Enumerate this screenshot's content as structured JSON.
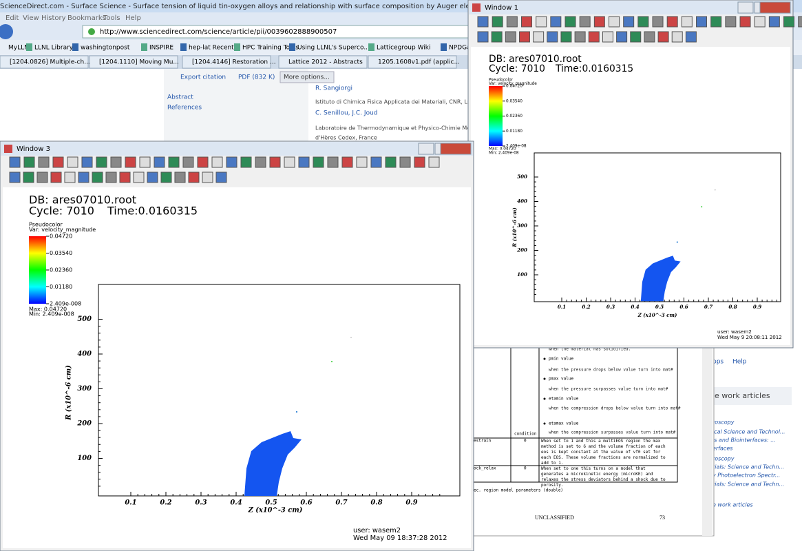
{
  "browser": {
    "title": "ScienceDirect.com - Surface Science - Surface tension of liquid tin-oxygen alloys and relationship with surface composition by Auger electron spectroscopy - Mozilla Firefox",
    "menu": [
      "Edit",
      "View",
      "History",
      "Bookmarks",
      "Tools",
      "Help"
    ],
    "url": "http://www.sciencedirect.com/science/article/pii/0039602888900507",
    "bookmarks": [
      "MyLLNL",
      "LLNL Library",
      "washingtonpost",
      "INSPIRE",
      "hep-lat Recent",
      "HPC Training Tools",
      "Using LLNL's Superco...",
      "Latticegroup Wiki",
      "NPDGami"
    ],
    "tabs": [
      "[1204.0826] Multiple-ch...",
      "[1204.1110] Moving Mu...",
      "[1204.4146] Restoration ...",
      "Lattice 2012 - Abstracts",
      "1205.1608v1.pdf (applic..."
    ],
    "page": {
      "actions": [
        "Export citation",
        "PDF (832 K)",
        "More options..."
      ],
      "nav": [
        "Abstract",
        "References"
      ],
      "author1": "R. Sangiorgi",
      "affiliation1": "Istituto di Chimica Fisica Applicata dei Materiali, CNR, Lungoba",
      "author2": "C. Senillou, J.C. Joud",
      "affiliation2": "Laboratoire de Thermodynamique et Physico-Chimie Métallurg",
      "affiliation2b": "d'Hères Cedex, France"
    }
  },
  "document": {
    "lines": [
      "when the material has solidified.",
      "pmin value",
      "when the pressure drops below value turn into mat#",
      "pmax value",
      "when the pressure surpasses value turn into mat#",
      "etamin value",
      "when the compression drops below value turn into mat#",
      "etamax value",
      "when the compression surpasses value turn into mat#"
    ],
    "condition": "condition",
    "rows": [
      [
        "estrain",
        "0",
        "When set to 1 and this a multiEOS region the max method is set to 6 and the volume fraction of each eos is kept constant at the value of vf0 set for each EOS. These volume fractions are normalized to add to 1."
      ],
      [
        "ock_relax",
        "0",
        "When set to one this turns on a model that generates a microkinetic energy (microKE) and relaxes the stress deviators behind a shock due to porosity."
      ]
    ],
    "caption": "ec. region model parameters (double)",
    "footer": "UNCLASSIFIED",
    "page": "73"
  },
  "sidebar": {
    "links": [
      "pps",
      "Help"
    ],
    "heading": "e work articles",
    "items": [
      "roscopy",
      "ical Science and Technol...",
      "is and Biointerfaces: ...",
      "erfaces",
      "roscopy",
      "rials: Science and Techn...",
      "y Photoelectron Spectr...",
      "rials: Science and Techn...",
      "e work articles"
    ]
  },
  "windows": [
    {
      "title": "Window 3",
      "db": "DB: ares07010.root",
      "cycle": "Cycle: 7010",
      "time": "Time:0.0160315",
      "plot": "Pseudocolor",
      "var": "Var: velocity_magnitude",
      "colorbar": [
        "0.04720",
        "0.03540",
        "0.02360",
        "0.01180",
        "2.409e-008"
      ],
      "max": "Max: 0.04720",
      "min": "Min: 2.409e-008",
      "xticks": [
        "0.1",
        "0.2",
        "0.3",
        "0.4",
        "0.5",
        "0.6",
        "0.7",
        "0.8",
        "0.9"
      ],
      "yticks": [
        "100",
        "200",
        "300",
        "400",
        "500"
      ],
      "xlabel": "Z (x10^-3 cm)",
      "ylabel": "R (x10^-6 cm)",
      "user": "user: wasem2",
      "date": "Wed May 09 18:37:28 2012"
    },
    {
      "title": "Window 1",
      "db": "DB: ares07010.root",
      "cycle": "Cycle: 7010",
      "time": "Time:0.0160315",
      "plot": "Pseudocolor",
      "var": "Var: velocity_magnitude",
      "colorbar": [
        "0.04720",
        "0.03540",
        "0.02360",
        "0.01180",
        "2.409e-08"
      ],
      "max": "Max: 0.04720",
      "min": "Min: 2.409e-08",
      "xticks": [
        "0.1",
        "0.2",
        "0.3",
        "0.4",
        "0.5",
        "0.6",
        "0.7",
        "0.8",
        "0.9"
      ],
      "yticks": [
        "100",
        "200",
        "300",
        "400",
        "500"
      ],
      "xlabel": "Z (x10^-3 cm)",
      "ylabel": "R (x10^-6 cm)",
      "user": "user: wasem2",
      "date": "Wed May 9 20:08:11 2012"
    }
  ]
}
